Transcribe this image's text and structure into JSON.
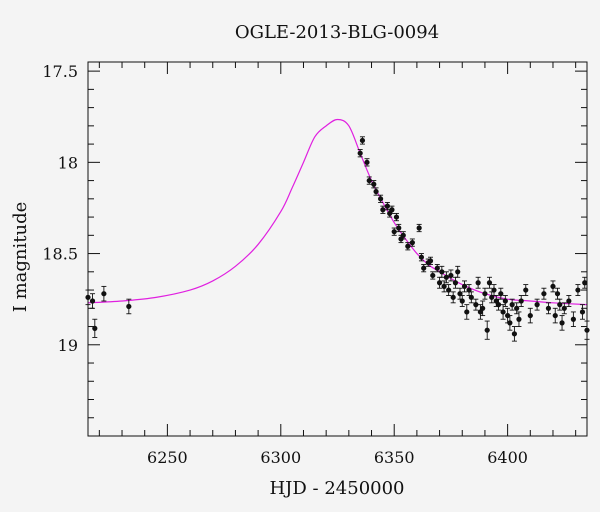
{
  "chart_data": {
    "type": "scatter",
    "title": "OGLE-2013-BLG-0094",
    "xlabel": "HJD - 2450000",
    "ylabel": "I magnitude",
    "xlim": [
      6215,
      6435
    ],
    "ylim": [
      19.5,
      17.45
    ],
    "y_inverted": true,
    "xticks": [
      6250,
      6300,
      6350,
      6400
    ],
    "yticks": [
      17.5,
      18,
      18.5,
      19
    ],
    "grid": false,
    "colors": {
      "points": "#111111",
      "model": "#e020e0",
      "background": "#f4f4f4"
    },
    "model": {
      "name": "",
      "x": [
        6215,
        6230,
        6245,
        6260,
        6270,
        6280,
        6290,
        6300,
        6305,
        6310,
        6315,
        6320,
        6325,
        6330,
        6335,
        6340,
        6345,
        6350,
        6355,
        6360,
        6365,
        6370,
        6380,
        6390,
        6400,
        6410,
        6420,
        6435
      ],
      "y": [
        18.77,
        18.76,
        18.74,
        18.7,
        18.65,
        18.57,
        18.45,
        18.27,
        18.14,
        18.0,
        17.86,
        17.8,
        17.765,
        17.8,
        17.95,
        18.1,
        18.22,
        18.33,
        18.42,
        18.5,
        18.56,
        18.6,
        18.67,
        18.72,
        18.75,
        18.76,
        18.77,
        18.78
      ]
    },
    "series": [
      {
        "name": "",
        "x": [
          6215,
          6217,
          6218,
          6222,
          6233,
          6335,
          6336,
          6338,
          6339,
          6341,
          6342,
          6344,
          6345,
          6347,
          6348,
          6349,
          6350,
          6351,
          6352,
          6353,
          6354,
          6356,
          6358,
          6361,
          6362,
          6363,
          6365,
          6366,
          6367,
          6369,
          6370,
          6371,
          6372,
          6373,
          6374,
          6375,
          6376,
          6377,
          6378,
          6379,
          6380,
          6381,
          6382,
          6383,
          6384,
          6386,
          6387,
          6388,
          6389,
          6390,
          6391,
          6392,
          6393,
          6394,
          6395,
          6396,
          6397,
          6398,
          6399,
          6400,
          6401,
          6402,
          6403,
          6404,
          6405,
          6406,
          6408,
          6410,
          6413,
          6416,
          6418,
          6420,
          6421,
          6422,
          6423,
          6424,
          6425,
          6427,
          6429,
          6431,
          6433,
          6434,
          6435
        ],
        "y": [
          18.74,
          18.76,
          18.91,
          18.72,
          18.79,
          17.95,
          17.88,
          18.0,
          18.1,
          18.12,
          18.16,
          18.2,
          18.26,
          18.24,
          18.28,
          18.26,
          18.38,
          18.3,
          18.36,
          18.42,
          18.4,
          18.46,
          18.44,
          18.36,
          18.52,
          18.58,
          18.55,
          18.54,
          18.62,
          18.58,
          18.66,
          18.6,
          18.68,
          18.63,
          18.7,
          18.62,
          18.74,
          18.66,
          18.6,
          18.72,
          18.76,
          18.68,
          18.82,
          18.7,
          18.74,
          18.78,
          18.66,
          18.82,
          18.8,
          18.72,
          18.92,
          18.66,
          18.74,
          18.7,
          18.76,
          18.78,
          18.72,
          18.82,
          18.76,
          18.84,
          18.88,
          18.78,
          18.94,
          18.8,
          18.86,
          18.76,
          18.7,
          18.84,
          18.78,
          18.72,
          18.8,
          18.68,
          18.84,
          18.72,
          18.78,
          18.88,
          18.8,
          18.76,
          18.86,
          18.7,
          18.82,
          18.66,
          18.92
        ],
        "err": [
          0.04,
          0.04,
          0.05,
          0.04,
          0.04,
          0.02,
          0.02,
          0.02,
          0.02,
          0.02,
          0.02,
          0.02,
          0.02,
          0.02,
          0.02,
          0.02,
          0.02,
          0.02,
          0.02,
          0.02,
          0.02,
          0.02,
          0.02,
          0.02,
          0.02,
          0.02,
          0.02,
          0.02,
          0.02,
          0.02,
          0.03,
          0.03,
          0.03,
          0.03,
          0.03,
          0.03,
          0.03,
          0.03,
          0.03,
          0.03,
          0.03,
          0.03,
          0.04,
          0.03,
          0.03,
          0.03,
          0.03,
          0.04,
          0.04,
          0.03,
          0.05,
          0.03,
          0.03,
          0.03,
          0.03,
          0.03,
          0.03,
          0.04,
          0.03,
          0.04,
          0.04,
          0.03,
          0.04,
          0.03,
          0.04,
          0.03,
          0.03,
          0.04,
          0.03,
          0.03,
          0.03,
          0.03,
          0.04,
          0.03,
          0.03,
          0.04,
          0.03,
          0.03,
          0.04,
          0.03,
          0.04,
          0.03,
          0.05
        ]
      }
    ]
  }
}
